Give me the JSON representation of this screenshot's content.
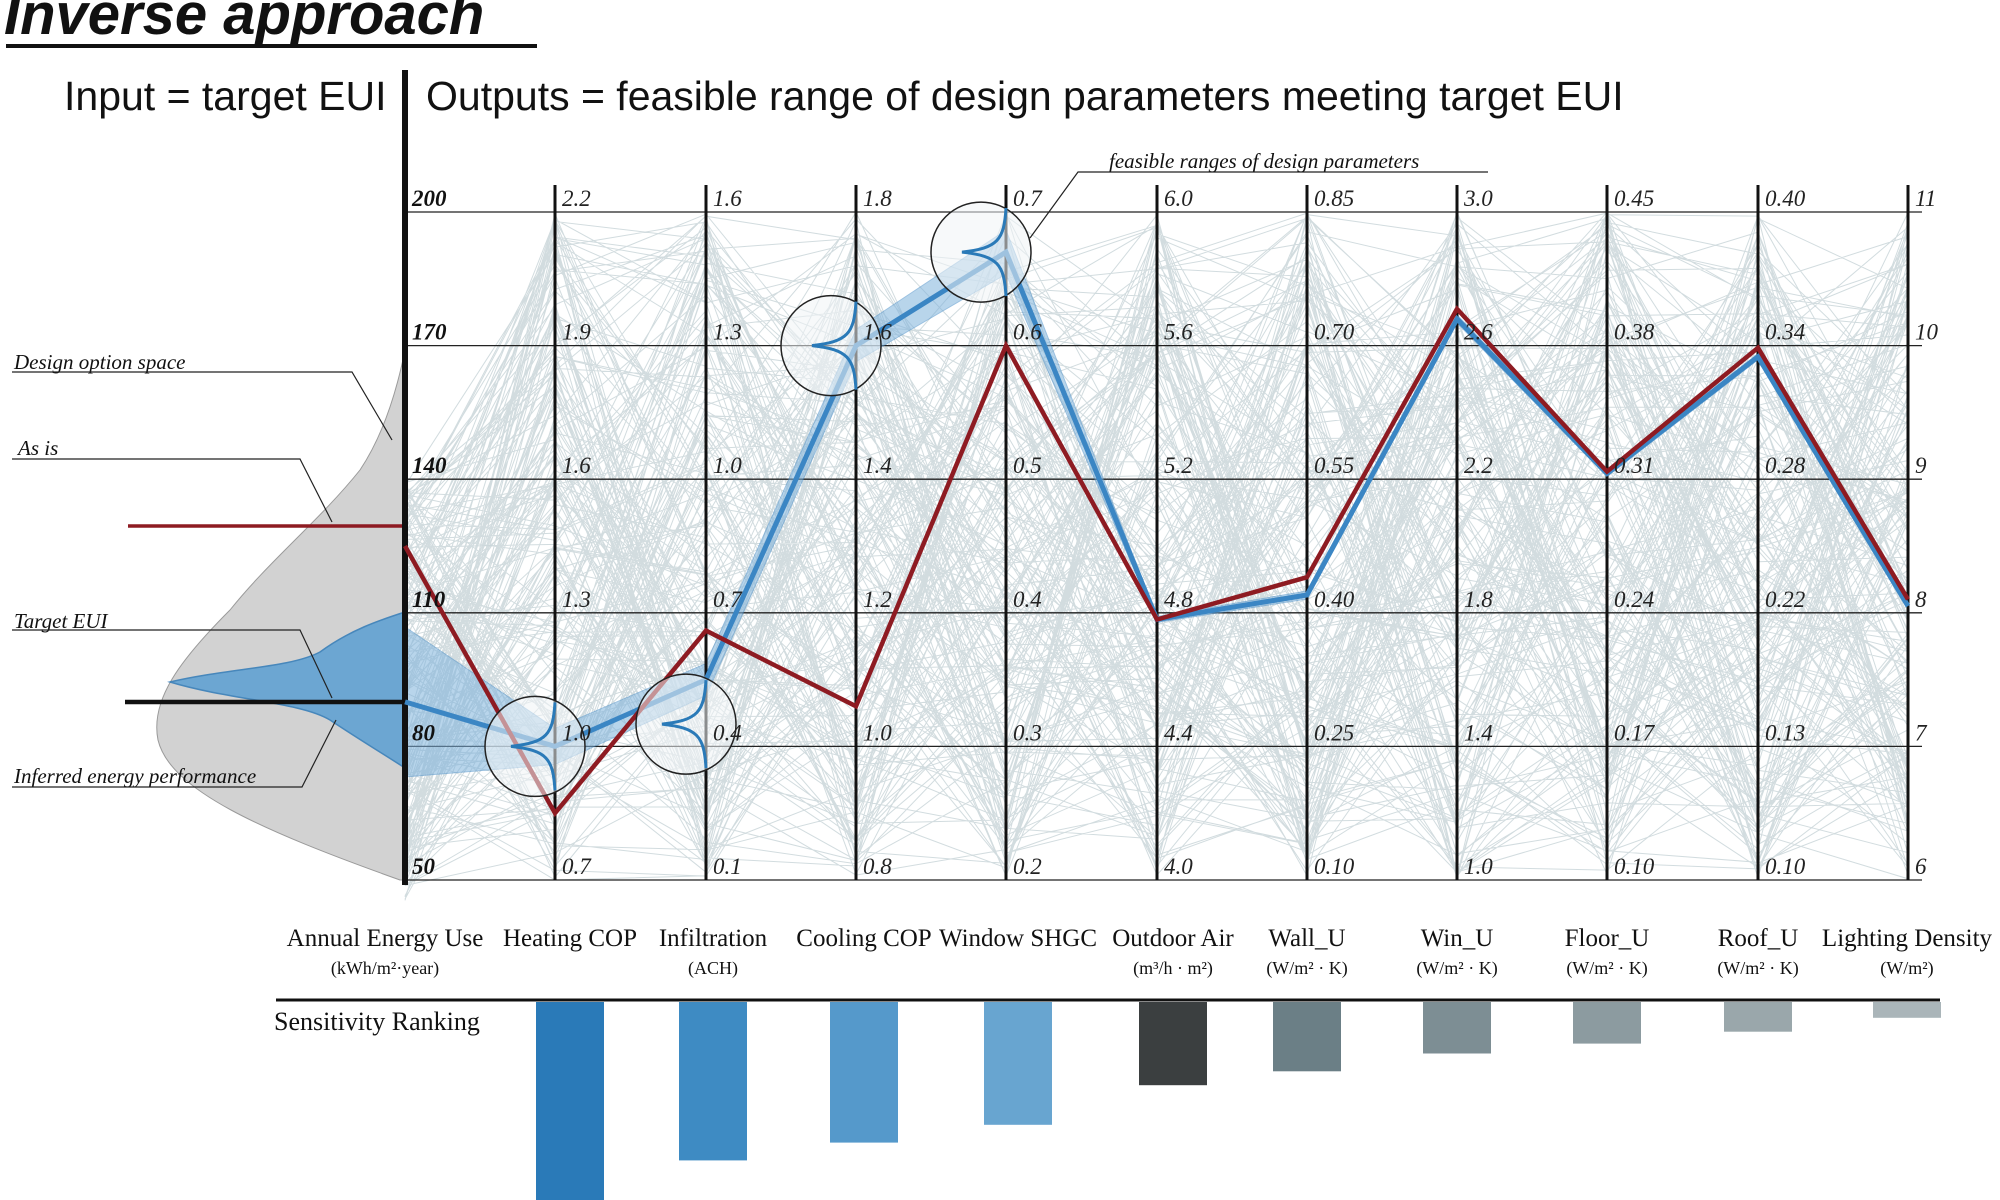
{
  "title": "Inverse approach",
  "header": {
    "input_label": "Input = target EUI",
    "output_label": "Outputs = feasible range of design parameters meeting target EUI"
  },
  "annotations": {
    "design_option_space": "Design option space",
    "as_is": "As is",
    "target_eui": "Target EUI",
    "inferred": "Inferred energy performance",
    "feasible": "feasible ranges of design parameters"
  },
  "sensitivity_label": "Sensitivity Ranking",
  "colors": {
    "background_lines": "#b4c5ca",
    "as_is": "#8e1b22",
    "target": "#3b86c4",
    "band": "#7fb3dc",
    "axis": "#111111"
  },
  "chart_data": {
    "type": "parallel_coordinates",
    "axes": [
      {
        "name": "Annual Energy Use",
        "unit": "(kWh/m²·year)",
        "ticks": [
          "200",
          "170",
          "140",
          "110",
          "80",
          "50"
        ],
        "bold_ticks": true
      },
      {
        "name": "Heating COP",
        "unit": "",
        "ticks": [
          "2.2",
          "1.9",
          "1.6",
          "1.3",
          "1.0",
          "0.7"
        ]
      },
      {
        "name": "Infiltration",
        "unit": "(ACH)",
        "ticks": [
          "1.6",
          "1.3",
          "1.0",
          "0.7",
          "0.4",
          "0.1"
        ]
      },
      {
        "name": "Cooling COP",
        "unit": "",
        "ticks": [
          "1.8",
          "1.6",
          "1.4",
          "1.2",
          "1.0",
          "0.8"
        ]
      },
      {
        "name": "Window SHGC",
        "unit": "",
        "ticks": [
          "0.7",
          "0.6",
          "0.5",
          "0.4",
          "0.3",
          "0.2"
        ]
      },
      {
        "name": "Outdoor Air",
        "unit": "(m³/h · m²)",
        "ticks": [
          "6.0",
          "5.6",
          "5.2",
          "4.8",
          "4.4",
          "4.0"
        ]
      },
      {
        "name": "Wall_U",
        "unit": "(W/m² · K)",
        "ticks": [
          "0.85",
          "0.70",
          "0.55",
          "0.40",
          "0.25",
          "0.10"
        ]
      },
      {
        "name": "Win_U",
        "unit": "(W/m² · K)",
        "ticks": [
          "3.0",
          "2.6",
          "2.2",
          "1.8",
          "1.4",
          "1.0"
        ]
      },
      {
        "name": "Floor_U",
        "unit": "(W/m² · K)",
        "ticks": [
          "0.45",
          "0.38",
          "0.31",
          "0.24",
          "0.17",
          "0.10"
        ]
      },
      {
        "name": "Roof_U",
        "unit": "(W/m² · K)",
        "ticks": [
          "0.40",
          "0.34",
          "0.28",
          "0.22",
          "0.13",
          "0.10"
        ]
      },
      {
        "name": "Lighting Density",
        "unit": "(W/m²)",
        "ticks": [
          "11",
          "10",
          "9",
          "8",
          "7",
          "6"
        ]
      }
    ],
    "series": [
      {
        "name": "As is",
        "values": [
          125,
          0.85,
          0.66,
          1.06,
          0.6,
          4.78,
          0.44,
          2.71,
          0.314,
          0.339,
          8.1
        ]
      },
      {
        "name": "Target EUI",
        "values": [
          90,
          1.0,
          0.55,
          1.6,
          0.67,
          4.78,
          0.42,
          2.68,
          0.313,
          0.335,
          8.05
        ]
      }
    ],
    "target_eui": 90,
    "feasible_ranges": [
      {
        "axis": "Heating COP",
        "mode": 1.0
      },
      {
        "axis": "Infiltration",
        "mode": 0.45
      },
      {
        "axis": "Cooling COP",
        "mode": 1.6
      },
      {
        "axis": "Window SHGC",
        "mode": 0.67
      }
    ],
    "sensitivity": [
      {
        "axis": "Heating COP",
        "value": 100,
        "color": "#2a7ab8"
      },
      {
        "axis": "Infiltration",
        "value": 80,
        "color": "#3e8bc3"
      },
      {
        "axis": "Cooling COP",
        "value": 71,
        "color": "#5599cb"
      },
      {
        "axis": "Window SHGC",
        "value": 62,
        "color": "#68a5d0"
      },
      {
        "axis": "Outdoor Air",
        "value": 42,
        "color": "#3b3f40"
      },
      {
        "axis": "Wall_U",
        "value": 35,
        "color": "#6b7f86"
      },
      {
        "axis": "Win_U",
        "value": 26,
        "color": "#7d8e94"
      },
      {
        "axis": "Floor_U",
        "value": 21,
        "color": "#8c9ba0"
      },
      {
        "axis": "Roof_U",
        "value": 15,
        "color": "#9aa7ab"
      },
      {
        "axis": "Lighting Density",
        "value": 8,
        "color": "#aab5b9"
      }
    ]
  }
}
